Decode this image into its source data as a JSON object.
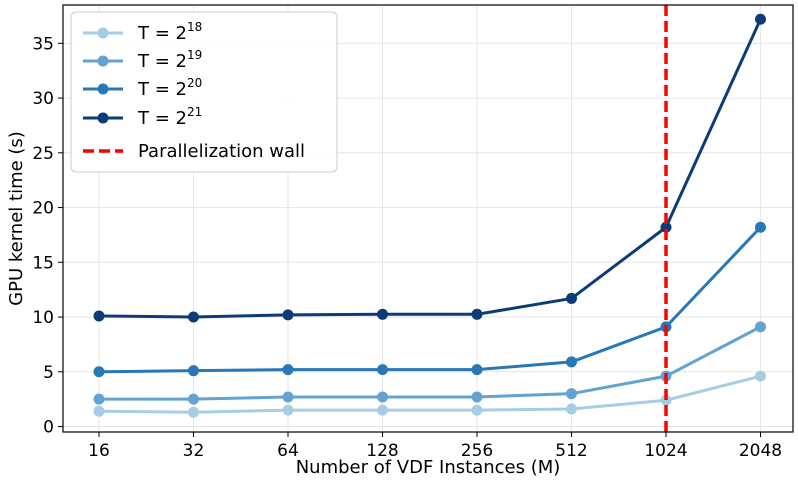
{
  "chart_data": {
    "type": "line",
    "title": "",
    "xlabel": "Number of VDF Instances (M)",
    "ylabel": "GPU kernel time (s)",
    "categories": [
      "16",
      "32",
      "64",
      "128",
      "256",
      "512",
      "1024",
      "2048"
    ],
    "ylim": [
      -0.5,
      38.5
    ],
    "yticks": [
      "0",
      "5",
      "10",
      "15",
      "20",
      "25",
      "30",
      "35"
    ],
    "grid": true,
    "legend_position": "top-left",
    "series": [
      {
        "name": "T = 2^18",
        "base": "T = 2",
        "exp": "18",
        "color": "#a6cee3",
        "values": [
          1.4,
          1.3,
          1.5,
          1.5,
          1.5,
          1.6,
          2.4,
          4.6
        ]
      },
      {
        "name": "T = 2^19",
        "base": "T = 2",
        "exp": "19",
        "color": "#62a3d1",
        "values": [
          2.5,
          2.5,
          2.7,
          2.7,
          2.7,
          3.0,
          4.6,
          9.1
        ]
      },
      {
        "name": "T = 2^20",
        "base": "T = 2",
        "exp": "20",
        "color": "#2878b8",
        "values": [
          5.0,
          5.1,
          5.2,
          5.2,
          5.2,
          5.9,
          9.1,
          18.2
        ]
      },
      {
        "name": "T = 2^21",
        "base": "T = 2",
        "exp": "21",
        "color": "#0c3c78",
        "values": [
          10.1,
          10.0,
          10.2,
          10.25,
          10.25,
          11.7,
          18.2,
          37.2
        ]
      }
    ],
    "vline": {
      "label": "Parallelization wall",
      "at_category": "1024",
      "color": "#ff0000"
    }
  }
}
